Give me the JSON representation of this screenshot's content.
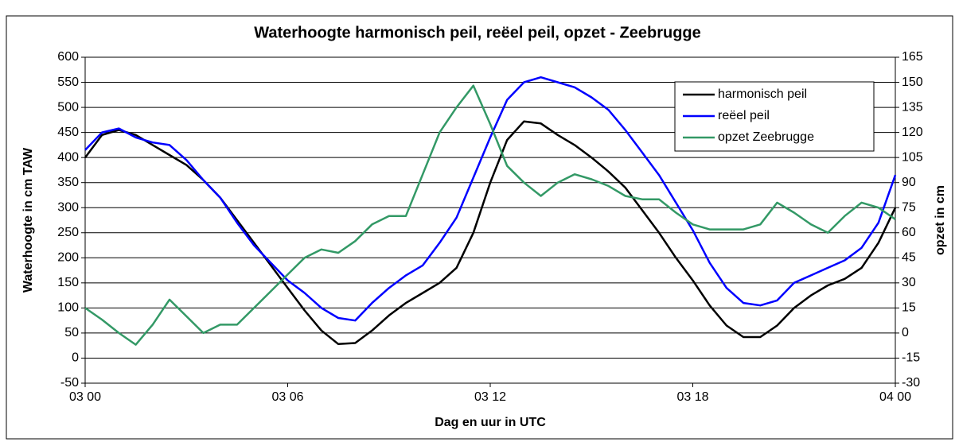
{
  "chart_data": {
    "type": "line",
    "title": "Waterhoogte harmonisch peil, reëel peil, opzet - Zeebrugge",
    "x_label": "Dag en uur in UTC",
    "y_label": "Waterhoogte in cm TAW",
    "y2_label": "opzet in cm",
    "x": [
      0,
      0.5,
      1,
      1.5,
      2,
      2.5,
      3,
      3.5,
      4,
      4.5,
      5,
      5.5,
      6,
      6.5,
      7,
      7.5,
      8,
      8.5,
      9,
      9.5,
      10,
      10.5,
      11,
      11.5,
      12,
      12.5,
      13,
      13.5,
      14,
      14.5,
      15,
      15.5,
      16,
      16.5,
      17,
      17.5,
      18,
      18.5,
      19,
      19.5,
      20,
      20.5,
      21,
      21.5,
      22,
      22.5,
      23,
      23.5,
      24
    ],
    "xlim": [
      0,
      24
    ],
    "xticks": [
      {
        "value": 0,
        "label": "03 00"
      },
      {
        "value": 6,
        "label": "03 06"
      },
      {
        "value": 12,
        "label": "03 12"
      },
      {
        "value": 18,
        "label": "03 18"
      },
      {
        "value": 24,
        "label": "04 00"
      }
    ],
    "ylim": [
      -50,
      600
    ],
    "yticks": [
      -50,
      0,
      50,
      100,
      150,
      200,
      250,
      300,
      350,
      400,
      450,
      500,
      550,
      600
    ],
    "y2lim": [
      -30,
      165
    ],
    "y2ticks": [
      -30,
      -15,
      0,
      15,
      30,
      45,
      60,
      75,
      90,
      105,
      120,
      135,
      150,
      165
    ],
    "grid": true,
    "legend": "upper right",
    "series": [
      {
        "name": "harmonisch peil",
        "color": "#000000",
        "values": [
          400,
          445,
          455,
          445,
          425,
          405,
          385,
          355,
          320,
          275,
          230,
          185,
          140,
          95,
          55,
          28,
          30,
          55,
          85,
          110,
          130,
          150,
          180,
          250,
          350,
          435,
          472,
          468,
          445,
          425,
          400,
          372,
          340,
          295,
          250,
          200,
          155,
          105,
          65,
          42,
          42,
          65,
          100,
          125,
          145,
          158,
          180,
          230,
          300
        ]
      },
      {
        "name": "reëel peil",
        "color": "#0000ff",
        "values": [
          415,
          450,
          458,
          440,
          430,
          425,
          395,
          355,
          320,
          270,
          225,
          190,
          155,
          130,
          100,
          80,
          75,
          110,
          140,
          165,
          185,
          230,
          280,
          360,
          440,
          515,
          550,
          560,
          550,
          540,
          520,
          495,
          455,
          410,
          365,
          310,
          255,
          190,
          140,
          110,
          105,
          115,
          150,
          165,
          180,
          195,
          220,
          270,
          365
        ]
      },
      {
        "name": "opzet Zeebrugge",
        "color": "#339966",
        "axis": "y2",
        "values": [
          15,
          8,
          0,
          -7,
          5,
          20,
          10,
          0,
          5,
          5,
          15,
          25,
          35,
          45,
          50,
          48,
          55,
          65,
          70,
          70,
          95,
          120,
          135,
          148,
          125,
          100,
          90,
          82,
          90,
          95,
          92,
          88,
          82,
          80,
          80,
          72,
          65,
          62,
          62,
          62,
          65,
          78,
          72,
          65,
          60,
          70,
          78,
          75,
          68
        ]
      }
    ]
  }
}
